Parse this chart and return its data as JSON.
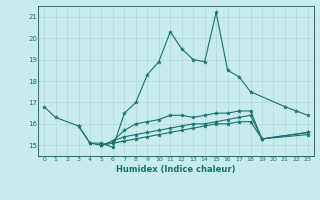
{
  "title": "",
  "xlabel": "Humidex (Indice chaleur)",
  "background_color": "#c8ecec",
  "grid_color": "#b0d8d8",
  "line_color": "#1a7070",
  "xlim": [
    -0.5,
    23.5
  ],
  "ylim": [
    14.5,
    21.5
  ],
  "yticks": [
    15,
    16,
    17,
    18,
    19,
    20,
    21
  ],
  "xticks": [
    0,
    1,
    2,
    3,
    4,
    5,
    6,
    7,
    8,
    9,
    10,
    11,
    12,
    13,
    14,
    15,
    16,
    17,
    18,
    19,
    20,
    21,
    22,
    23
  ],
  "line1_x": [
    0,
    1,
    3,
    4,
    5,
    6,
    7,
    8,
    9,
    10,
    11,
    12,
    13,
    14,
    15,
    16,
    17,
    18,
    21,
    22,
    23
  ],
  "line1_y": [
    16.8,
    16.3,
    15.9,
    15.1,
    15.1,
    14.9,
    16.5,
    17.0,
    18.3,
    18.9,
    20.3,
    19.5,
    19.0,
    18.9,
    21.2,
    18.5,
    18.2,
    17.5,
    16.8,
    16.6,
    16.4
  ],
  "line2_x": [
    3,
    4,
    5,
    6,
    7,
    8,
    9,
    10,
    11,
    12,
    13,
    14,
    15,
    16,
    17,
    18,
    19,
    23
  ],
  "line2_y": [
    15.9,
    15.1,
    15.0,
    15.2,
    15.7,
    16.0,
    16.1,
    16.2,
    16.4,
    16.4,
    16.3,
    16.4,
    16.5,
    16.5,
    16.6,
    16.6,
    15.3,
    15.6
  ],
  "line3_x": [
    5,
    6,
    7,
    8,
    9,
    10,
    11,
    12,
    13,
    14,
    15,
    16,
    17,
    18,
    19,
    23
  ],
  "line3_y": [
    15.0,
    15.2,
    15.4,
    15.5,
    15.6,
    15.7,
    15.8,
    15.9,
    16.0,
    16.0,
    16.1,
    16.2,
    16.3,
    16.4,
    15.3,
    15.6
  ],
  "line4_x": [
    5,
    6,
    7,
    8,
    9,
    10,
    11,
    12,
    13,
    14,
    15,
    16,
    17,
    18,
    19,
    23
  ],
  "line4_y": [
    15.0,
    15.1,
    15.2,
    15.3,
    15.4,
    15.5,
    15.6,
    15.7,
    15.8,
    15.9,
    16.0,
    16.0,
    16.1,
    16.1,
    15.3,
    15.5
  ]
}
